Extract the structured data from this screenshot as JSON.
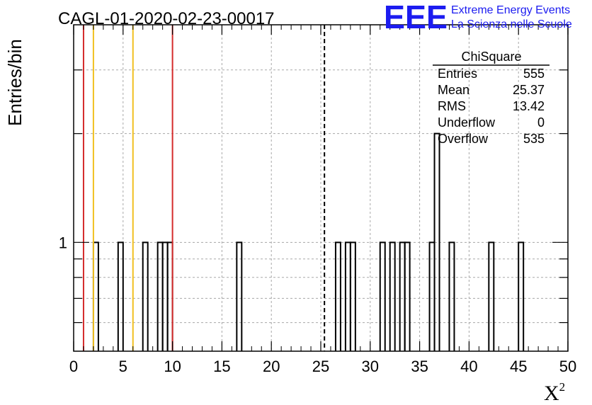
{
  "header": {
    "run_title": "CAGL-01-2020-02-23-00017",
    "logo_text": "EEE",
    "logo_line1": "Extreme Energy Events",
    "logo_line2": "La Scienza nelle Scuole"
  },
  "chart_data": {
    "type": "histogram",
    "xlabel": "X",
    "xlabel_superscript": "2",
    "ylabel": "Entries/bin",
    "xlim": [
      0,
      50
    ],
    "y_scale": "log",
    "ylim": [
      0.5,
      4
    ],
    "grid": true,
    "x_ticks": [
      "0",
      "5",
      "10",
      "15",
      "20",
      "25",
      "30",
      "35",
      "40",
      "45",
      "50"
    ],
    "y_tick_labels": [
      {
        "value": 1,
        "label": "1"
      }
    ],
    "bin_width": 0.5,
    "bins": [
      {
        "x": 2.0,
        "count": 1
      },
      {
        "x": 4.5,
        "count": 1
      },
      {
        "x": 7.0,
        "count": 1
      },
      {
        "x": 8.5,
        "count": 1
      },
      {
        "x": 9.0,
        "count": 1
      },
      {
        "x": 9.5,
        "count": 1
      },
      {
        "x": 16.5,
        "count": 1
      },
      {
        "x": 26.5,
        "count": 1
      },
      {
        "x": 27.5,
        "count": 1
      },
      {
        "x": 28.0,
        "count": 1
      },
      {
        "x": 31.0,
        "count": 1
      },
      {
        "x": 32.0,
        "count": 1
      },
      {
        "x": 33.0,
        "count": 1
      },
      {
        "x": 33.5,
        "count": 1
      },
      {
        "x": 36.0,
        "count": 1
      },
      {
        "x": 36.5,
        "count": 2
      },
      {
        "x": 38.0,
        "count": 1
      },
      {
        "x": 42.0,
        "count": 1
      },
      {
        "x": 45.0,
        "count": 1
      }
    ],
    "vertical_lines": [
      {
        "x": 1.0,
        "color": "#d42a2a",
        "style": "solid"
      },
      {
        "x": 2.0,
        "color": "#f0c020",
        "style": "solid"
      },
      {
        "x": 6.0,
        "color": "#f0c020",
        "style": "solid"
      },
      {
        "x": 10.0,
        "color": "#d42a2a",
        "style": "solid"
      },
      {
        "x": 25.37,
        "color": "#000000",
        "style": "dashed"
      }
    ],
    "stats_box": {
      "title": "ChiSquare",
      "rows": [
        {
          "label": "Entries",
          "value": "555"
        },
        {
          "label": "Mean",
          "value": "25.37"
        },
        {
          "label": "RMS",
          "value": "13.42"
        },
        {
          "label": "Underflow",
          "value": "0"
        },
        {
          "label": "Overflow",
          "value": "535"
        }
      ]
    }
  }
}
